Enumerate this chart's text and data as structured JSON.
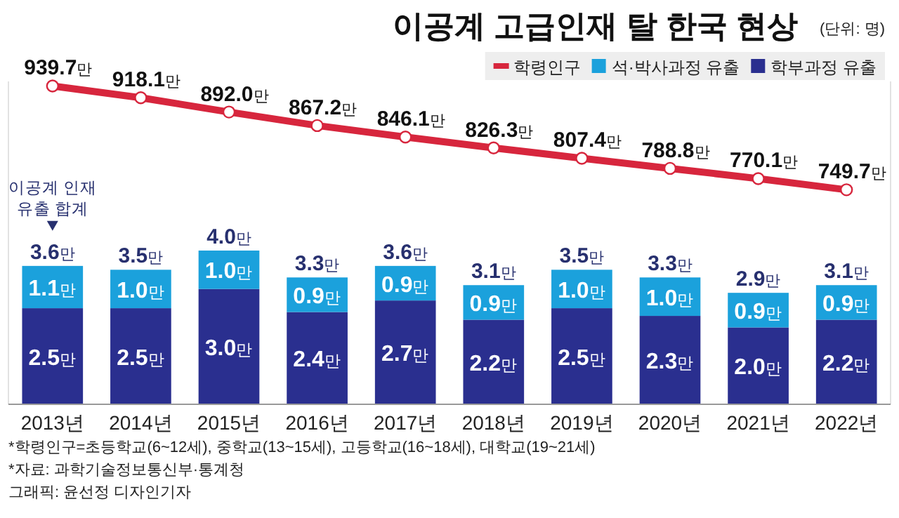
{
  "chart_data": {
    "type": "bar",
    "title": "이공계 고급인재 탈 한국 현상",
    "subtitle": "(단위: 명)",
    "categories": [
      "2013년",
      "2014년",
      "2015년",
      "2016년",
      "2017년",
      "2018년",
      "2019년",
      "2020년",
      "2021년",
      "2022년"
    ],
    "stacked": true,
    "tick_labels": "x",
    "grid": false,
    "legend": "top right",
    "ylim": [
      0,
      8.4
    ],
    "y2lim": [
      357,
      948
    ],
    "series": [
      {
        "name": "학부과정 유출",
        "color": "#2a2f8f",
        "values": [
          2.5,
          2.5,
          3.0,
          2.4,
          2.7,
          2.2,
          2.5,
          2.3,
          2.0,
          2.2
        ],
        "value_labels": [
          "2.5만",
          "2.5만",
          "3.0만",
          "2.4만",
          "2.7만",
          "2.2만",
          "2.5만",
          "2.3만",
          "2.0만",
          "2.2만"
        ]
      },
      {
        "name": "석·박사과정 유출",
        "color": "#1ba1dc",
        "values": [
          1.1,
          1.0,
          1.0,
          0.9,
          0.9,
          0.9,
          1.0,
          1.0,
          0.9,
          0.9
        ],
        "value_labels": [
          "1.1만",
          "1.0만",
          "1.0만",
          "0.9만",
          "0.9만",
          "0.9만",
          "1.0만",
          "1.0만",
          "0.9만",
          "0.9만"
        ]
      },
      {
        "name": "학령인구",
        "type": "line",
        "axis": "y2",
        "color": "#d7263d",
        "marker": "circle",
        "values": [
          939.7,
          918.1,
          892.0,
          867.2,
          846.1,
          826.3,
          807.4,
          788.8,
          770.1,
          749.7
        ],
        "value_labels": [
          "939.7만",
          "918.1만",
          "892.0만",
          "867.2만",
          "846.1만",
          "826.3만",
          "807.4만",
          "788.8만",
          "770.1만",
          "749.7만"
        ]
      }
    ],
    "totals": [
      "3.6만",
      "3.5만",
      "4.0만",
      "3.3만",
      "3.6만",
      "3.1만",
      "3.5만",
      "3.3만",
      "2.9만",
      "3.1만"
    ],
    "annotations": [
      {
        "text": "이공계 인재 유출 합계",
        "x": "2013년",
        "y": 3.6
      },
      "*학령인구=초등학교(6~12세), 중학교(13~15세), 고등학교(16~18세), 대학교(19~21세)",
      "*자료: 과학기술정보통신부·통계청",
      "그래픽: 윤선정 디자인기자"
    ]
  }
}
